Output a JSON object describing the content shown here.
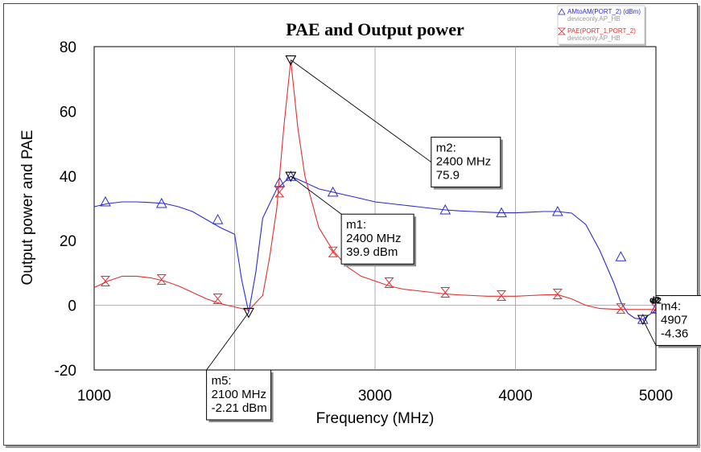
{
  "chart_data": {
    "type": "line",
    "title": "PAE and Output power",
    "xlabel": "Frequency (MHz)",
    "ylabel": "Output power and PAE",
    "xlim": [
      1000,
      5000
    ],
    "ylim": [
      -20,
      80
    ],
    "xticks": [
      "1000",
      "2000",
      "3000",
      "4000",
      "5000"
    ],
    "yticks": [
      "-20",
      "0",
      "20",
      "40",
      "60",
      "80"
    ],
    "grid": "vertical-only",
    "legend_position": "top-right",
    "series": [
      {
        "name": "AMtoAM(PORT_2) (dBm)",
        "sub": "deviceonly.AP_HB",
        "color": "#2b2bd1",
        "marker": "triangle-up",
        "x": [
          1000,
          1100,
          1200,
          1300,
          1400,
          1500,
          1600,
          1700,
          1800,
          1900,
          2000,
          2050,
          2100,
          2150,
          2200,
          2300,
          2400,
          2500,
          2600,
          2700,
          2800,
          2900,
          3000,
          3100,
          3200,
          3300,
          3400,
          3500,
          3600,
          3700,
          3800,
          3900,
          4000,
          4100,
          4200,
          4300,
          4400,
          4500,
          4600,
          4700,
          4750,
          4800,
          4850,
          4907,
          4950,
          5000
        ],
        "y": [
          30.5,
          31.5,
          32,
          32,
          31.8,
          31.5,
          30.5,
          29,
          26.5,
          24,
          22,
          8,
          -2.21,
          10,
          27,
          36,
          39.9,
          38,
          36,
          35,
          34,
          33,
          32,
          31.5,
          31,
          30.5,
          30,
          29.5,
          29.2,
          29,
          28.8,
          28.6,
          28.6,
          28.8,
          29,
          29,
          28.5,
          25,
          17,
          7,
          1,
          -2.5,
          -4,
          -4.36,
          -3,
          -1.5
        ],
        "marker_x": [
          1080,
          1480,
          1880,
          2320,
          2400,
          2700,
          3500,
          3900,
          4300,
          4750,
          4907,
          5000
        ],
        "marker_y": [
          32,
          31.5,
          26.5,
          38,
          39.9,
          35,
          29.5,
          28.6,
          29,
          15,
          -4.36,
          -1
        ]
      },
      {
        "name": "PAE(PORT_1,PORT_2)",
        "sub": "deviceonly.AP_HB",
        "color": "#e03030",
        "marker": "hourglass",
        "x": [
          1000,
          1100,
          1200,
          1300,
          1400,
          1500,
          1600,
          1700,
          1800,
          1900,
          2000,
          2100,
          2200,
          2250,
          2300,
          2350,
          2400,
          2450,
          2500,
          2600,
          2700,
          2800,
          2900,
          3000,
          3100,
          3200,
          3300,
          3400,
          3500,
          3600,
          3700,
          3800,
          3900,
          4000,
          4100,
          4200,
          4300,
          4400,
          4500,
          4600,
          4700,
          4800,
          4900,
          5000
        ],
        "y": [
          5.5,
          7.5,
          9,
          9,
          8.5,
          7.5,
          6,
          4,
          2,
          0.5,
          -0.5,
          -1.5,
          3,
          15,
          30,
          55,
          75.9,
          55,
          40,
          24,
          17,
          12,
          9,
          7.5,
          6,
          5,
          4.5,
          4,
          3.5,
          3.2,
          3,
          2.8,
          2.8,
          2.8,
          3,
          3.2,
          3.3,
          2,
          0,
          -1,
          -1.2,
          -1.3,
          -1.3,
          -1.3
        ],
        "marker_x": [
          1080,
          1480,
          1880,
          2320,
          2700,
          3100,
          3500,
          3900,
          4300,
          4750,
          5000
        ],
        "marker_y": [
          7.5,
          8,
          2,
          35,
          16.5,
          7,
          4,
          3,
          3.5,
          -1,
          -1
        ]
      }
    ],
    "markers": [
      {
        "id": "m1",
        "lines": [
          "m1:",
          "2400 MHz",
          "39.9 dBm"
        ],
        "x": 2400,
        "y": 39.9,
        "label_at": [
          2760,
          28.2
        ]
      },
      {
        "id": "m2",
        "lines": [
          "m2:",
          "2400 MHz",
          "75.9"
        ],
        "x": 2400,
        "y": 75.9,
        "label_at": [
          3400,
          52
        ]
      },
      {
        "id": "m4",
        "lines": [
          "m4:",
          "4907",
          "-4.36"
        ],
        "x": 4907,
        "y": -4.36,
        "label_at": [
          5000,
          3
        ]
      },
      {
        "id": "m5",
        "lines": [
          "m5:",
          "2100 MHz",
          "-2.21 dBm"
        ],
        "x": 2100,
        "y": -2.21,
        "label_at": [
          1800,
          -20
        ]
      }
    ],
    "end_labels": [
      "d2",
      "d2"
    ]
  }
}
